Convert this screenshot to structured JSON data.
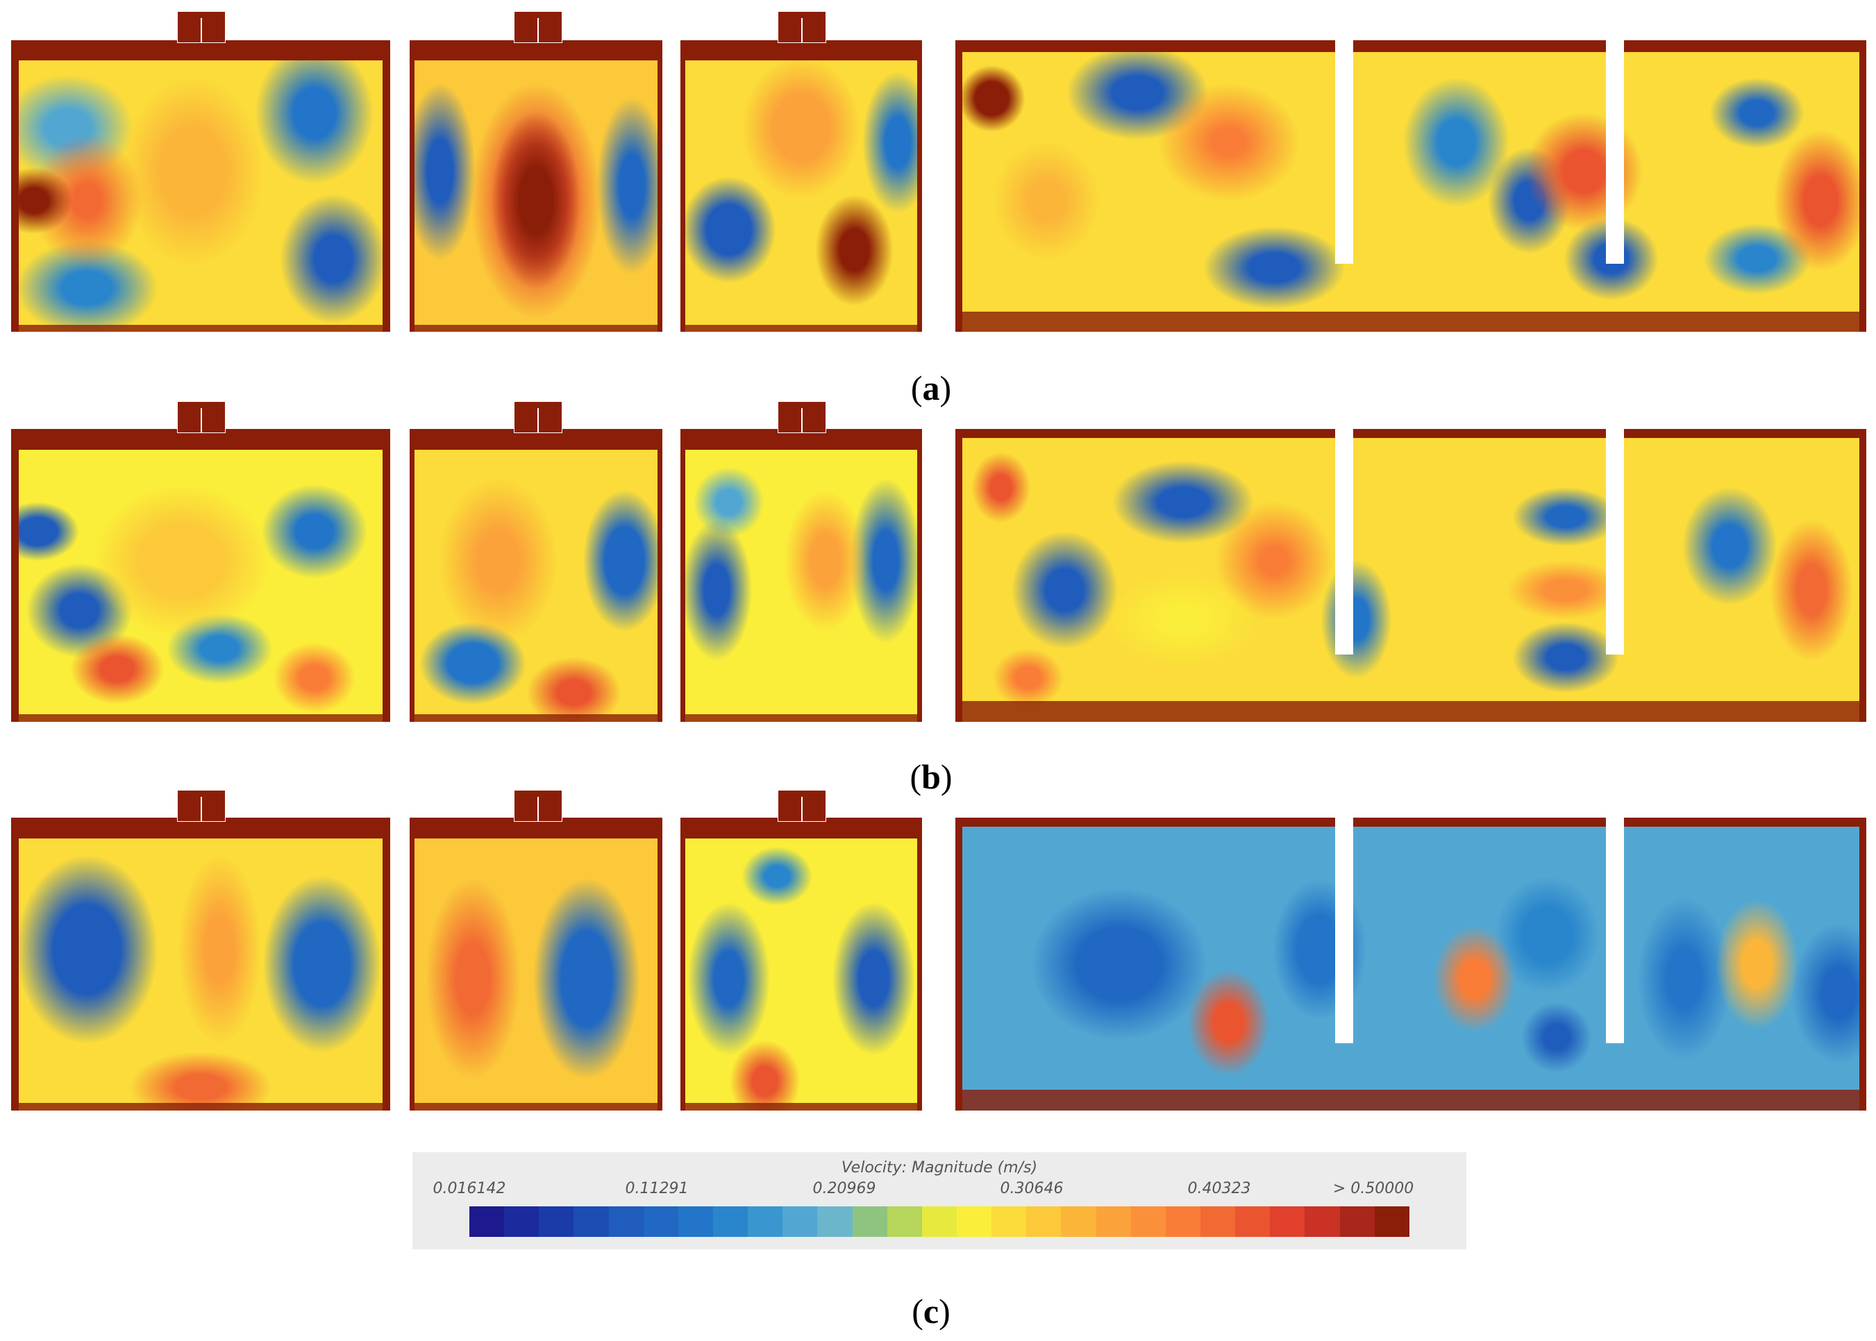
{
  "captions": [
    "a",
    "b",
    "c"
  ],
  "legend": {
    "title": "Velocity: Magnitude (m/s)",
    "ticks": [
      "0.016142",
      "0.11291",
      "0.20969",
      "0.30646",
      "0.40323",
      "> 0.50000"
    ]
  },
  "colors": {
    "scale": [
      "#1c1a8c",
      "#1b2a9c",
      "#1a3ba8",
      "#1c4db3",
      "#1f5cbc",
      "#2068c2",
      "#2275c8",
      "#2a86cc",
      "#3a96cf",
      "#52a7d2",
      "#6cb6cc",
      "#8ec480",
      "#b5d65a",
      "#e6ea3e",
      "#fbee3a",
      "#fbdc3a",
      "#fbc93a",
      "#fbb63a",
      "#fba23a",
      "#fb903a",
      "#f97d36",
      "#f26a33",
      "#ea5530",
      "#e0402c",
      "#c93224",
      "#a8261a",
      "#8b1e08"
    ],
    "wall": "#8b1e08"
  }
}
